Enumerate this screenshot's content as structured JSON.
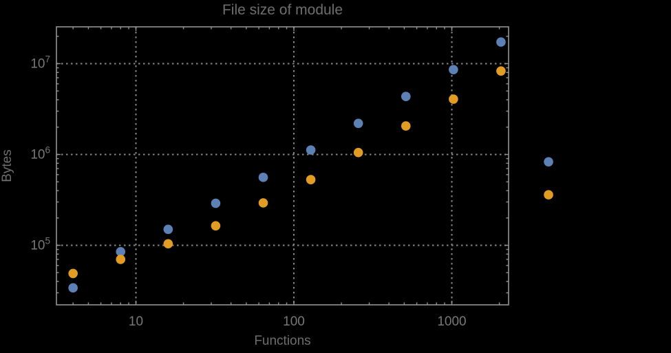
{
  "chart_data": {
    "type": "scatter",
    "title": "File size of module",
    "xlabel": "Functions",
    "ylabel": "Bytes",
    "xscale": "log",
    "yscale": "log",
    "xlim": [
      3.1,
      2290
    ],
    "ylim": [
      22000,
      25000000
    ],
    "plot_range_clipping": false,
    "grid": {
      "on": true,
      "style": "dotted"
    },
    "legend": "none",
    "x_ticks": [
      {
        "value": 10,
        "label": "10"
      },
      {
        "value": 100,
        "label": "100"
      },
      {
        "value": 1000,
        "label": "1000"
      }
    ],
    "y_ticks": [
      {
        "value": 100000,
        "mantissa": "10",
        "exponent": "5"
      },
      {
        "value": 1000000,
        "mantissa": "10",
        "exponent": "6"
      },
      {
        "value": 10000000,
        "mantissa": "10",
        "exponent": "7"
      }
    ],
    "series": [
      {
        "name": "blue-series",
        "color": "#5E81B5",
        "marker": "disk",
        "points": [
          [
            4,
            34000
          ],
          [
            8,
            85000
          ],
          [
            16,
            150000
          ],
          [
            32,
            290000
          ],
          [
            64,
            560000
          ],
          [
            128,
            1120000
          ],
          [
            256,
            2200000
          ],
          [
            512,
            4350000
          ],
          [
            1024,
            8600000
          ],
          [
            2048,
            17300000
          ],
          [
            4096,
            830000
          ]
        ]
      },
      {
        "name": "orange-series",
        "color": "#E19C24",
        "marker": "disk",
        "points": [
          [
            4,
            49000
          ],
          [
            8,
            70000
          ],
          [
            16,
            104000
          ],
          [
            32,
            164000
          ],
          [
            64,
            293000
          ],
          [
            128,
            528000
          ],
          [
            256,
            1050000
          ],
          [
            512,
            2060000
          ],
          [
            1024,
            4070000
          ],
          [
            2048,
            8300000
          ],
          [
            4096,
            360000
          ]
        ]
      }
    ],
    "colors": {
      "background": "#000000",
      "frame": "#949494",
      "gridline": "#878787",
      "tick_label": "#787878",
      "title_text": "#6e6e6e"
    }
  }
}
